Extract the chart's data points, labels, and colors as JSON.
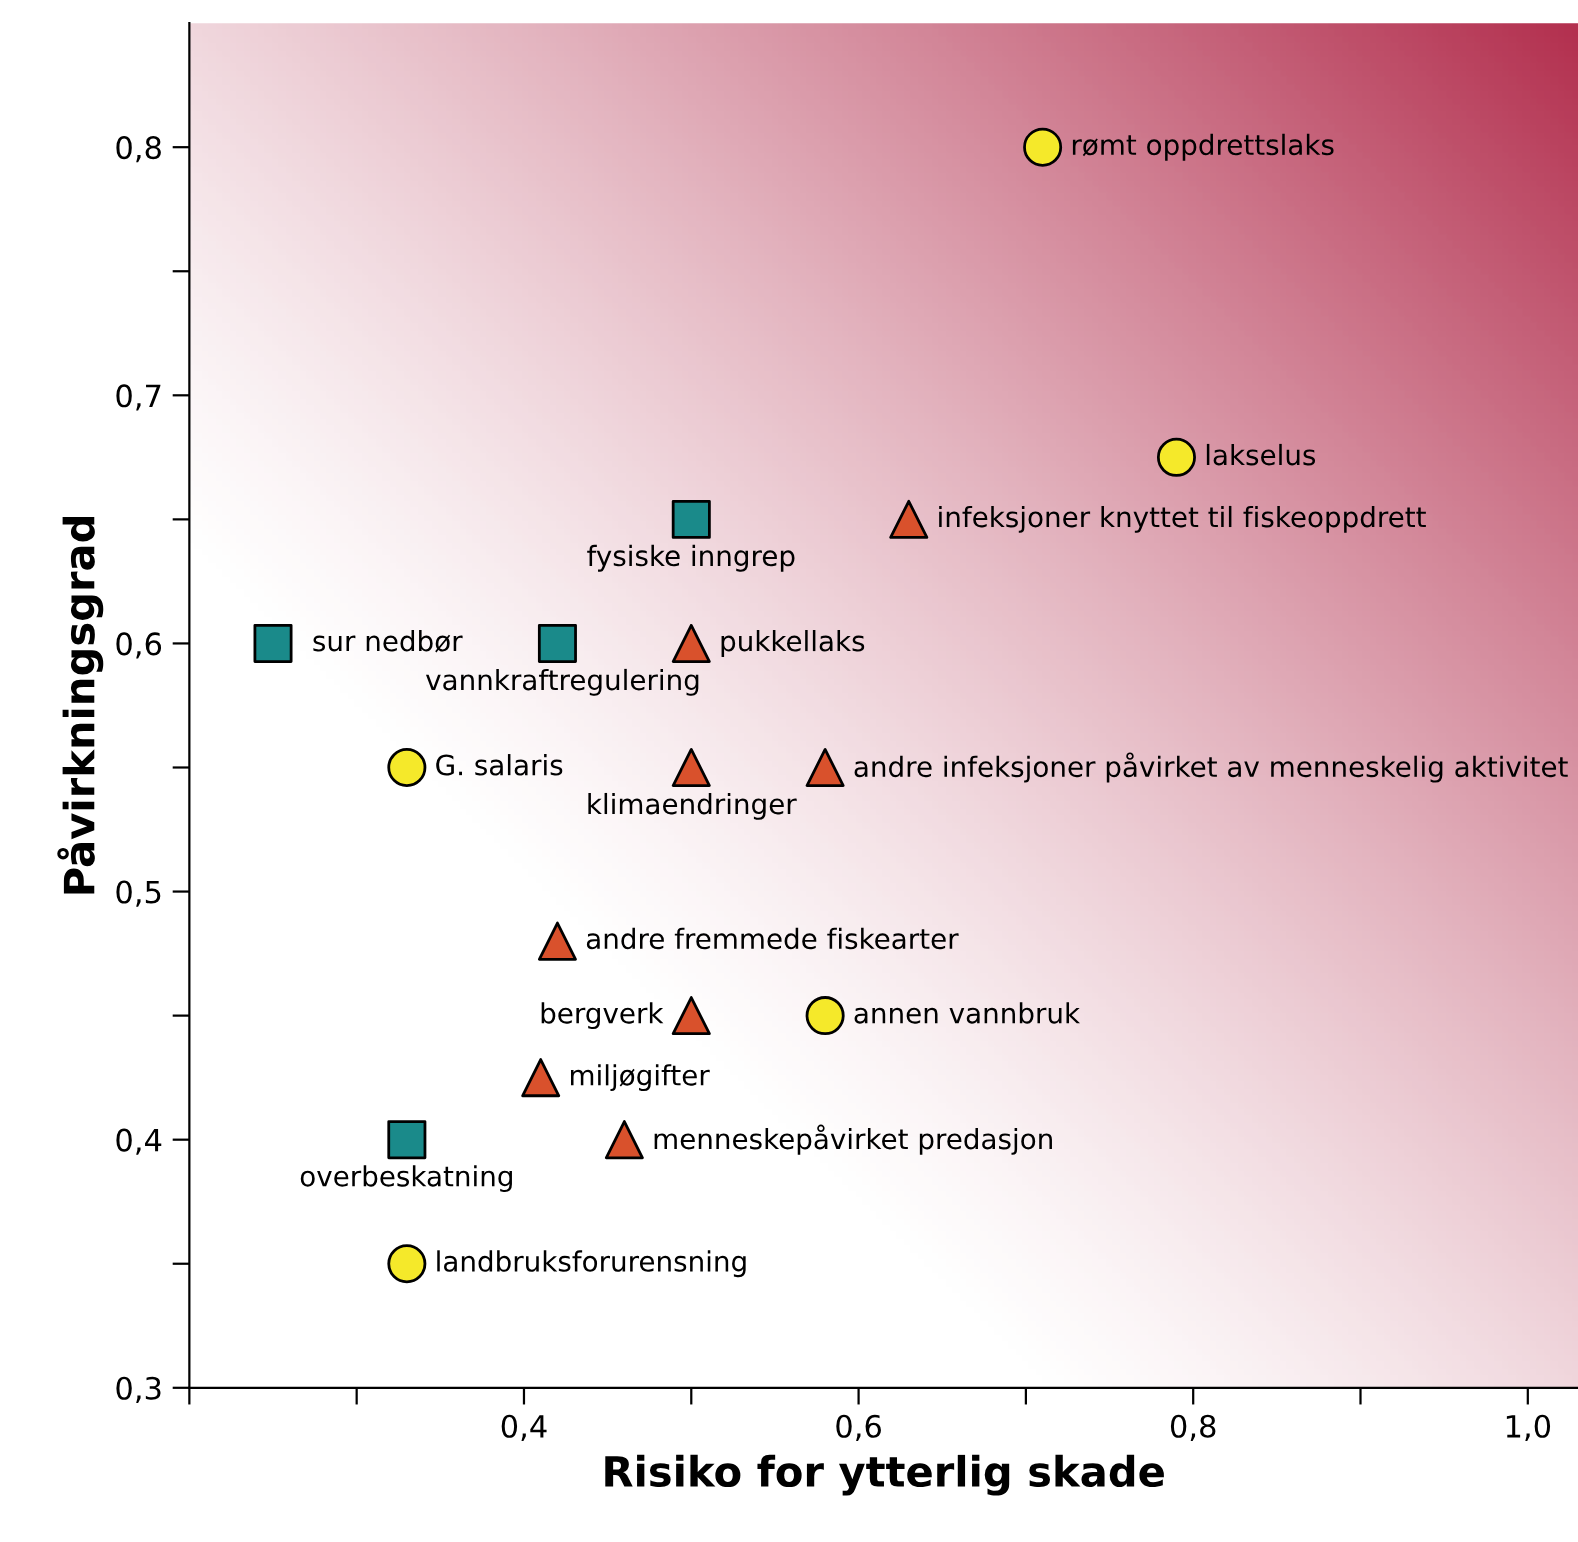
{
  "chart_data": {
    "type": "scatter",
    "xlabel": "Risiko for ytterlig skade",
    "ylabel": "Påvirkningsgrad",
    "xlim": [
      0.2,
      1.03
    ],
    "ylim": [
      0.3,
      0.85
    ],
    "xticks": [
      {
        "value": 0.2,
        "label": null
      },
      {
        "value": 0.3,
        "label": null
      },
      {
        "value": 0.4,
        "label": "0,4"
      },
      {
        "value": 0.5,
        "label": null
      },
      {
        "value": 0.6,
        "label": "0,6"
      },
      {
        "value": 0.7,
        "label": null
      },
      {
        "value": 0.8,
        "label": "0,8"
      },
      {
        "value": 0.9,
        "label": null
      },
      {
        "value": 1.0,
        "label": "1,0"
      }
    ],
    "yticks": [
      {
        "value": 0.3,
        "label": "0,3"
      },
      {
        "value": 0.35,
        "label": null
      },
      {
        "value": 0.4,
        "label": "0,4"
      },
      {
        "value": 0.45,
        "label": null
      },
      {
        "value": 0.5,
        "label": "0,5"
      },
      {
        "value": 0.55,
        "label": null
      },
      {
        "value": 0.6,
        "label": "0,6"
      },
      {
        "value": 0.65,
        "label": null
      },
      {
        "value": 0.7,
        "label": "0,7"
      },
      {
        "value": 0.75,
        "label": null
      },
      {
        "value": 0.8,
        "label": "0,8"
      }
    ],
    "grid": false,
    "legend": false,
    "series": [
      {
        "color": "#f5e92a",
        "marker": "circle",
        "x": [
          0.71,
          0.79,
          0.33,
          0.58,
          0.33
        ],
        "values": [
          0.8,
          0.675,
          0.55,
          0.45,
          0.35
        ]
      },
      {
        "color": "#1a8a8a",
        "marker": "square",
        "x": [
          0.5,
          0.25,
          0.42,
          0.33
        ],
        "values": [
          0.65,
          0.6,
          0.6,
          0.4
        ]
      },
      {
        "color": "#d9512c",
        "marker": "triangle",
        "x": [
          0.63,
          0.5,
          0.5,
          0.58,
          0.42,
          0.5,
          0.41,
          0.46
        ],
        "values": [
          0.65,
          0.6,
          0.55,
          0.55,
          0.48,
          0.45,
          0.425,
          0.4
        ]
      }
    ],
    "annotations": [
      {
        "text": "rømt oppdrettslaks",
        "x": 0.71,
        "y": 0.8
      },
      {
        "text": "lakselus",
        "x": 0.79,
        "y": 0.675
      },
      {
        "text": "G. salaris",
        "x": 0.33,
        "y": 0.55
      },
      {
        "text": "annen vannbruk",
        "x": 0.58,
        "y": 0.45
      },
      {
        "text": "landbruksforurensning",
        "x": 0.33,
        "y": 0.35
      },
      {
        "text": "fysiske inngrep",
        "x": 0.5,
        "y": 0.65
      },
      {
        "text": "sur nedbør",
        "x": 0.25,
        "y": 0.6
      },
      {
        "text": "vannkraftregulering",
        "x": 0.42,
        "y": 0.6
      },
      {
        "text": "overbeskatning",
        "x": 0.33,
        "y": 0.4
      },
      {
        "text": "infeksjoner knyttet til fiskeoppdrett",
        "x": 0.63,
        "y": 0.65
      },
      {
        "text": "pukkellaks",
        "x": 0.5,
        "y": 0.6
      },
      {
        "text": "klimaendringer",
        "x": 0.5,
        "y": 0.55
      },
      {
        "text": "andre infeksjoner påvirket av menneskelig aktivitet",
        "x": 0.58,
        "y": 0.55
      },
      {
        "text": "andre fremmede fiskearter",
        "x": 0.42,
        "y": 0.48
      },
      {
        "text": "bergverk",
        "x": 0.5,
        "y": 0.45
      },
      {
        "text": "miljøgifter",
        "x": 0.41,
        "y": 0.425
      },
      {
        "text": "menneskepåvirket predasjon",
        "x": 0.46,
        "y": 0.4
      }
    ]
  }
}
